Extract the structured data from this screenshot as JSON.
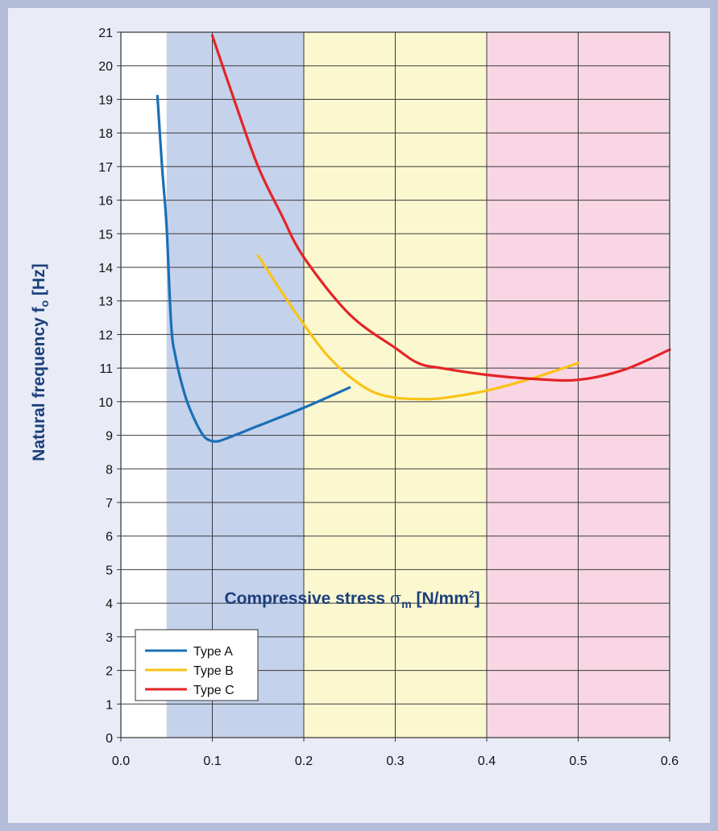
{
  "chart_data": {
    "type": "line",
    "xlabel": {
      "main": "Compressive stress ",
      "symbol": "σ",
      "sub": "m",
      "unit": " [N/mm",
      "sup": "2",
      "close": "]"
    },
    "ylabel": {
      "main": "Natural frequency f",
      "sub": "o",
      "unit": " [Hz]"
    },
    "xlim": [
      0.0,
      0.6
    ],
    "ylim": [
      0,
      21
    ],
    "x_ticks": [
      "0.0",
      "0.1",
      "0.2",
      "0.3",
      "0.4",
      "0.5",
      "0.6"
    ],
    "y_ticks": [
      "0",
      "1",
      "2",
      "3",
      "4",
      "5",
      "6",
      "7",
      "8",
      "9",
      "10",
      "11",
      "12",
      "13",
      "14",
      "15",
      "16",
      "17",
      "18",
      "19",
      "20",
      "21"
    ],
    "grid": true,
    "legend_position": "bottom-left",
    "bands": [
      {
        "x0": 0.05,
        "x1": 0.2,
        "color": "#c5d2ec"
      },
      {
        "x0": 0.2,
        "x1": 0.4,
        "color": "#fbf8d0"
      },
      {
        "x0": 0.4,
        "x1": 0.6,
        "color": "#f8d6e4"
      }
    ],
    "series": [
      {
        "name": "Type A",
        "color": "#1b6fb5",
        "points": [
          [
            0.04,
            19.1
          ],
          [
            0.045,
            17.0
          ],
          [
            0.05,
            15.2
          ],
          [
            0.055,
            12.3
          ],
          [
            0.06,
            11.3
          ],
          [
            0.07,
            10.2
          ],
          [
            0.08,
            9.5
          ],
          [
            0.09,
            9.0
          ],
          [
            0.097,
            8.85
          ],
          [
            0.105,
            8.82
          ],
          [
            0.115,
            8.9
          ],
          [
            0.15,
            9.28
          ],
          [
            0.2,
            9.82
          ],
          [
            0.25,
            10.42
          ]
        ]
      },
      {
        "name": "Type B",
        "color": "#f9c316",
        "points": [
          [
            0.15,
            14.35
          ],
          [
            0.175,
            13.3
          ],
          [
            0.2,
            12.3
          ],
          [
            0.225,
            11.4
          ],
          [
            0.25,
            10.75
          ],
          [
            0.275,
            10.3
          ],
          [
            0.3,
            10.12
          ],
          [
            0.325,
            10.08
          ],
          [
            0.35,
            10.1
          ],
          [
            0.4,
            10.33
          ],
          [
            0.45,
            10.7
          ],
          [
            0.5,
            11.15
          ]
        ]
      },
      {
        "name": "Type C",
        "color": "#e32427",
        "points": [
          [
            0.1,
            20.9
          ],
          [
            0.125,
            18.9
          ],
          [
            0.15,
            17.0
          ],
          [
            0.175,
            15.6
          ],
          [
            0.2,
            14.3
          ],
          [
            0.25,
            12.6
          ],
          [
            0.3,
            11.6
          ],
          [
            0.325,
            11.15
          ],
          [
            0.35,
            11.0
          ],
          [
            0.4,
            10.8
          ],
          [
            0.45,
            10.68
          ],
          [
            0.5,
            10.65
          ],
          [
            0.55,
            10.95
          ],
          [
            0.6,
            11.55
          ]
        ]
      }
    ]
  }
}
